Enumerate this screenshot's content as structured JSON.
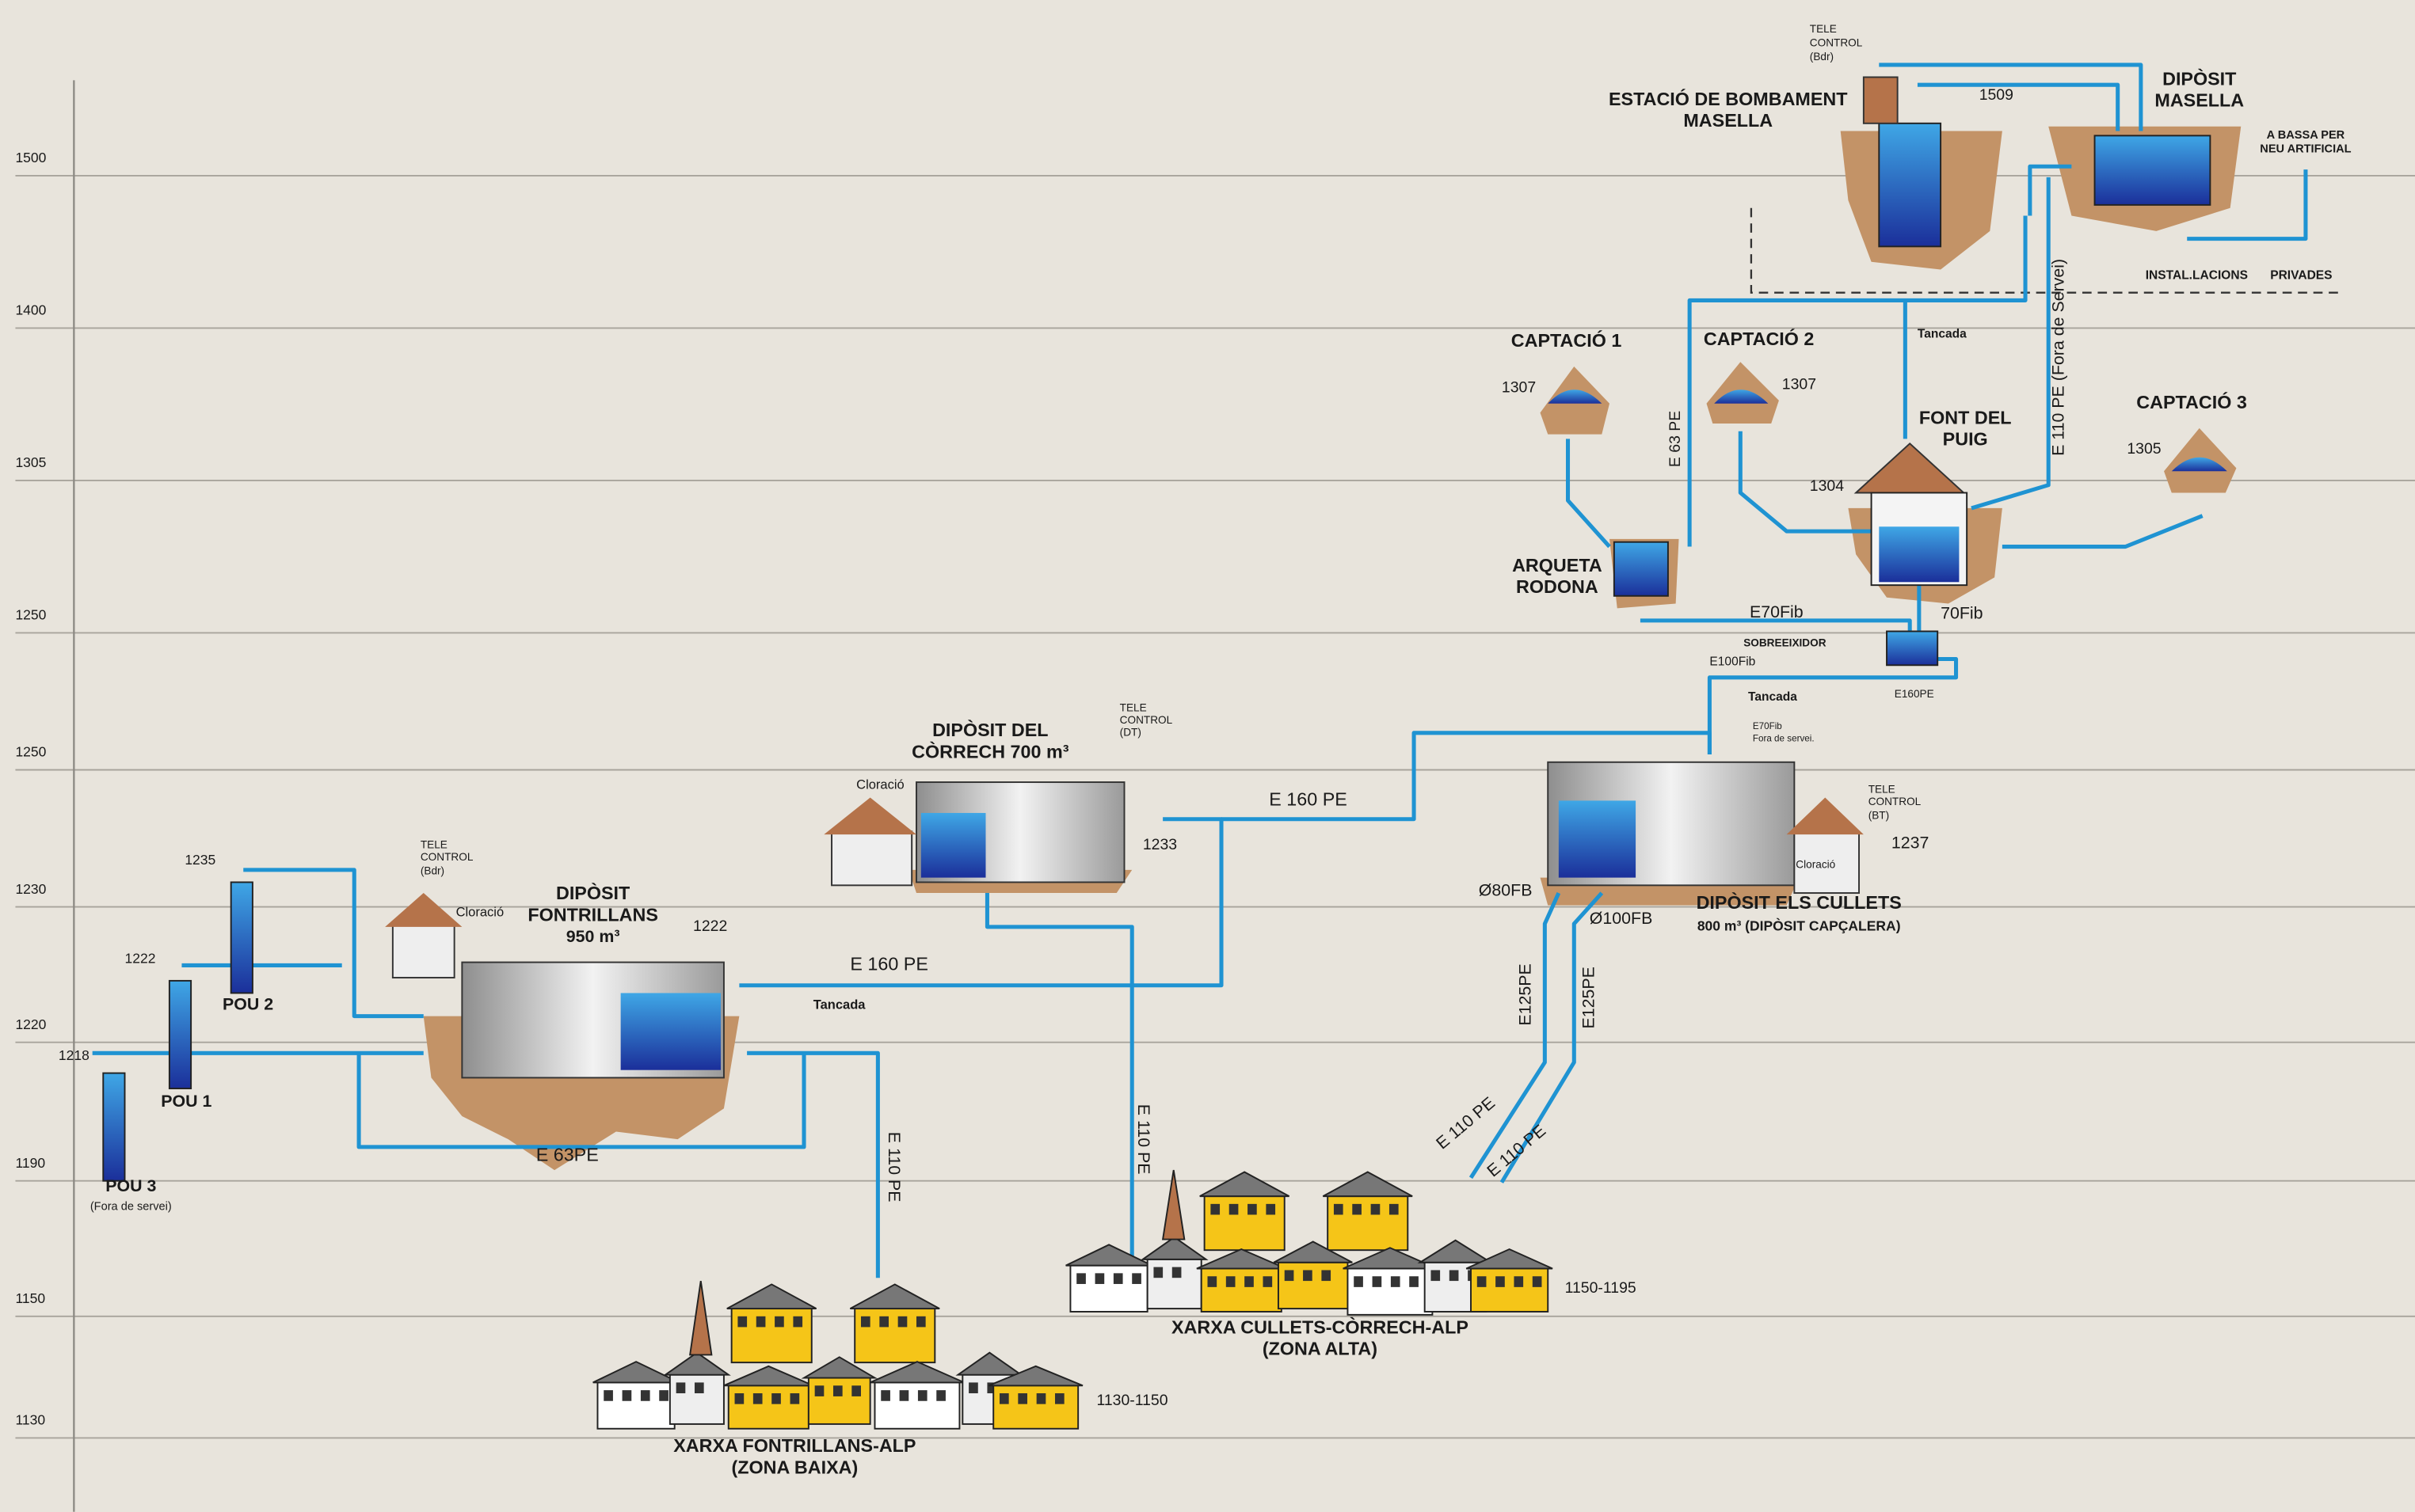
{
  "elevations": [
    "1500",
    "1400",
    "1305",
    "1250",
    "1250",
    "1230",
    "1220",
    "1190",
    "1150",
    "1130"
  ],
  "labels": [
    "TELE",
    "CONTROL",
    "(Bdr)",
    "ESTACIÓ DE BOMBAMENT",
    "MASELLA",
    "1509",
    "DIPÒSIT",
    "MASELLA",
    "A BASSA PER",
    "NEU ARTIFICIAL",
    "INSTAL.LACIONS",
    "PRIVADES",
    "CAPTACIÓ 1",
    "CAPTACIÓ 2",
    "1307",
    "1307",
    "Tancada",
    "FONT DEL",
    "PUIG",
    "CAPTACIÓ 3",
    "1305",
    "1304",
    "E 63 PE",
    "E 110 PE (Fora de Servei)",
    "ARQUETA",
    "RODONA",
    "E70Fib",
    "70Fib",
    "SOBREEIXIDOR",
    "E100Fib",
    "Tancada",
    "E160PE",
    "E70Fib",
    "Fora de servei.",
    "DIPÒSIT DEL",
    "CÒRRECH 700 m³",
    "TELE",
    "CONTROL",
    "(DT)",
    "Cloració",
    "1233",
    "E 160 PE",
    "TELE",
    "CONTROL",
    "(BT)",
    "1237",
    "Cloració",
    "Ø80FB",
    "Ø100FB",
    "DIPÒSIT ELS CULLETS",
    "800 m³ (DIPÒSIT CAPÇALERA)",
    "1235",
    "1222",
    "1218",
    "POU 2",
    "POU 1",
    "POU 3",
    "(Fora de servei)",
    "TELE",
    "CONTROL",
    "(Bdr)",
    "Cloració",
    "DIPÒSIT",
    "FONTRILLANS",
    "950 m³",
    "1222",
    "E 160 PE",
    "Tancada",
    "E 63PE",
    "E 110 PE",
    "E 110 PE",
    "E125PE",
    "E125PE",
    "E 110 PE",
    "E 110 PE",
    "1150-1195",
    "XARXA CULLETS-CÒRRECH-ALP",
    "(ZONA ALTA)",
    "1130-1150",
    "XARXA FONTRILLANS-ALP",
    "(ZONA BAIXA)"
  ]
}
